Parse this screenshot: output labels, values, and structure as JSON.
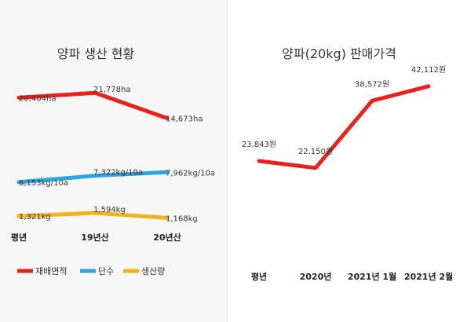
{
  "chart_data": [
    {
      "type": "line",
      "title": "양파 생산 현황",
      "categories": [
        "평년",
        "19년산",
        "20년산"
      ],
      "series": [
        {
          "name": "재배면적",
          "color": "#e8221b",
          "values": [
            20404,
            21778,
            14673
          ],
          "labels": [
            "20,404ha",
            "21,778ha",
            "14,673ha"
          ]
        },
        {
          "name": "단수",
          "color": "#2ba6e0",
          "values": [
            6153,
            7322,
            7962
          ],
          "labels": [
            "6,153kg/10a",
            "7,322kg/10a",
            "7,962kg/10a"
          ]
        },
        {
          "name": "생산량",
          "color": "#f2b21b",
          "values": [
            1321,
            1594,
            1168
          ],
          "labels": [
            "1,321kg",
            "1,594kg",
            "1,168kg"
          ]
        }
      ],
      "legend": "bottom",
      "grid": false
    },
    {
      "type": "line",
      "title": "양파(20kg) 판매가격",
      "categories": [
        "평년",
        "2020년",
        "2021년 1월",
        "2021년 2월"
      ],
      "series": [
        {
          "color": "#e8221b",
          "values": [
            23843,
            22150,
            38572,
            42112
          ],
          "labels": [
            "23,843원",
            "22,150원",
            "38,572원",
            "42,112원"
          ]
        }
      ],
      "legend": "none",
      "grid": false
    }
  ]
}
